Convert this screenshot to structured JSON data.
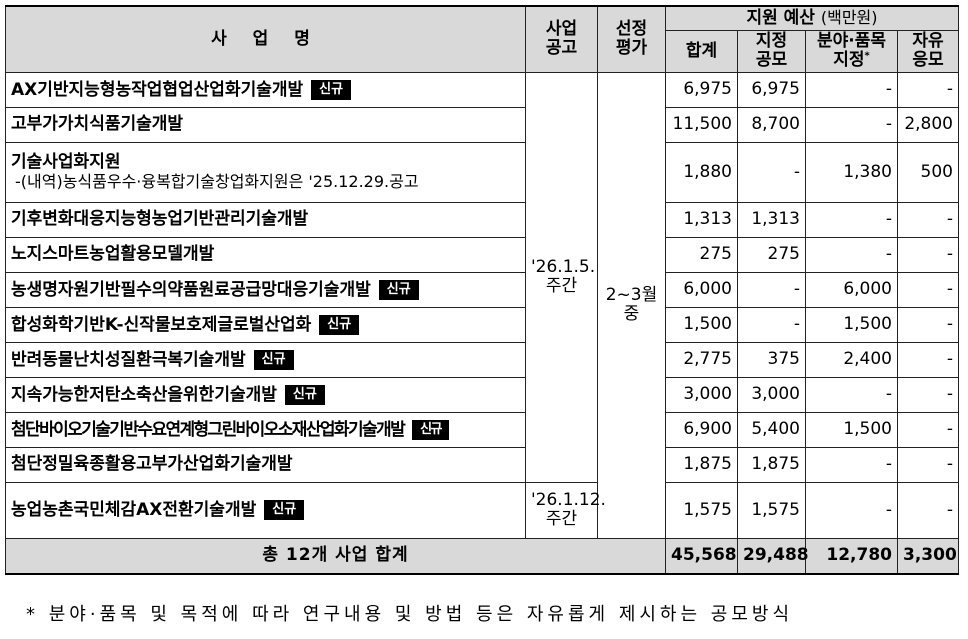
{
  "header": {
    "project_name": "사 업 명",
    "announcement": [
      "사업",
      "공고"
    ],
    "evaluation": [
      "선정",
      "평가"
    ],
    "budget_title": "지원 예산",
    "budget_unit": "(백만원)",
    "total": "합계",
    "designated": [
      "지정",
      "공모"
    ],
    "field_item": [
      "분야·품목",
      "지정"
    ],
    "field_item_mark": "*",
    "free": [
      "자유",
      "응모"
    ]
  },
  "badge_label": "신규",
  "announcement_groups": [
    {
      "text": [
        "'26.1.5.",
        "주간"
      ]
    },
    {
      "text": [
        "'26.1.12.",
        "주간"
      ]
    }
  ],
  "evaluation_text": [
    "2~3월",
    "중"
  ],
  "rows": [
    {
      "name": "AX기반지능형농작업협업산업화기술개발",
      "sub": "",
      "new": true,
      "total": "6,975",
      "designated": "6,975",
      "field_item": "-",
      "free": "-"
    },
    {
      "name": "고부가가치식품기술개발",
      "sub": "",
      "new": false,
      "total": "11,500",
      "designated": "8,700",
      "field_item": "-",
      "free": "2,800"
    },
    {
      "name": "기술사업화지원",
      "sub": "-(내역)농식품우수·융복합기술창업화지원은 '25.12.29.공고",
      "new": false,
      "total": "1,880",
      "designated": "-",
      "field_item": "1,380",
      "free": "500"
    },
    {
      "name": "기후변화대응지능형농업기반관리기술개발",
      "sub": "",
      "new": false,
      "total": "1,313",
      "designated": "1,313",
      "field_item": "-",
      "free": "-"
    },
    {
      "name": "노지스마트농업활용모델개발",
      "sub": "",
      "new": false,
      "total": "275",
      "designated": "275",
      "field_item": "-",
      "free": "-"
    },
    {
      "name": "농생명자원기반필수의약품원료공급망대응기술개발",
      "sub": "",
      "new": true,
      "total": "6,000",
      "designated": "-",
      "field_item": "6,000",
      "free": "-"
    },
    {
      "name": "합성화학기반K-신작물보호제글로벌산업화",
      "sub": "",
      "new": true,
      "total": "1,500",
      "designated": "-",
      "field_item": "1,500",
      "free": "-"
    },
    {
      "name": "반려동물난치성질환극복기술개발",
      "sub": "",
      "new": true,
      "total": "2,775",
      "designated": "375",
      "field_item": "2,400",
      "free": "-"
    },
    {
      "name": "지속가능한저탄소축산을위한기술개발",
      "sub": "",
      "new": true,
      "total": "3,000",
      "designated": "3,000",
      "field_item": "-",
      "free": "-"
    },
    {
      "name": "첨단바이오기술기반수요연계형그린바이오소재산업화기술개발",
      "sub": "",
      "new": true,
      "total": "6,900",
      "designated": "5,400",
      "field_item": "1,500",
      "free": "-"
    },
    {
      "name": "첨단정밀육종활용고부가산업화기술개발",
      "sub": "",
      "new": false,
      "total": "1,875",
      "designated": "1,875",
      "field_item": "-",
      "free": "-"
    },
    {
      "name": "농업농촌국민체감AX전환기술개발",
      "sub": "",
      "new": true,
      "total": "1,575",
      "designated": "1,575",
      "field_item": "-",
      "free": "-"
    }
  ],
  "total_row": {
    "label": "총 12개 사업 합계",
    "total": "45,568",
    "designated": "29,488",
    "field_item": "12,780",
    "free": "3,300"
  },
  "footnote": "* 분야·품목 및 목적에 따라 연구내용 및 방법 등은 자유롭게 제시하는 공모방식"
}
